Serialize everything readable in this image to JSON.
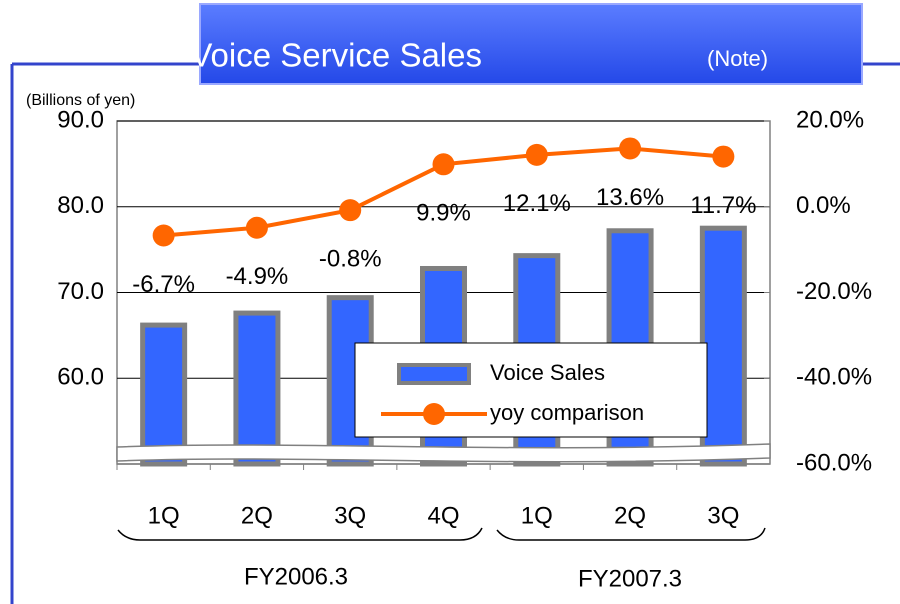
{
  "chart_data": {
    "type": "bar_line",
    "title": "Voice Service Sales",
    "title_note": "(Note)",
    "y_axis_label": "(Billions of yen)",
    "categories": [
      "1Q",
      "2Q",
      "3Q",
      "4Q",
      "1Q",
      "2Q",
      "3Q"
    ],
    "group_labels": [
      "FY2006.3",
      "FY2007.3"
    ],
    "series": [
      {
        "name": "Voice Sales",
        "type": "bar",
        "color": "#3366ff",
        "axis": "y",
        "values": [
          66.2,
          67.6,
          69.4,
          72.8,
          74.3,
          77.2,
          77.5
        ]
      },
      {
        "name": "yoy comparison",
        "type": "line",
        "color": "#ff6600",
        "axis": "y2",
        "values": [
          -6.7,
          -4.9,
          -0.8,
          9.9,
          12.1,
          13.6,
          11.7
        ],
        "value_labels": [
          "-6.7%",
          "-4.9%",
          "-0.8%",
          "9.9%",
          "12.1%",
          "13.6%",
          "11.7%"
        ]
      }
    ],
    "ylim": [
      50,
      90
    ],
    "yticks": [
      {
        "value": 60,
        "label": "60.0"
      },
      {
        "value": 70,
        "label": "70.0"
      },
      {
        "value": 80,
        "label": "80.0"
      },
      {
        "value": 90,
        "label": "90.0"
      }
    ],
    "y2lim": [
      -60,
      20
    ],
    "y2ticks": [
      {
        "value": -60,
        "label": "-60.0%"
      },
      {
        "value": -40,
        "label": "-40.0%"
      },
      {
        "value": -20,
        "label": "-20.0%"
      },
      {
        "value": 0,
        "label": "0.0%"
      },
      {
        "value": 20,
        "label": "20.0%"
      }
    ],
    "grid": true
  }
}
